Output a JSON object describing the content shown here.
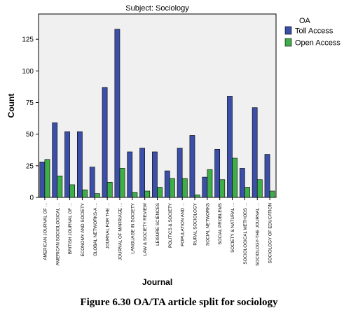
{
  "chart_data": {
    "type": "bar",
    "title": "Subject: Sociology",
    "xlabel": "Journal",
    "ylabel": "Count",
    "ylim": [
      0,
      145
    ],
    "yticks": [
      0,
      25,
      50,
      75,
      100,
      125
    ],
    "grid": false,
    "legend": {
      "title": "OA",
      "placement": "right"
    },
    "categories": [
      "AMERICAN JOURNAL OF ...",
      "AMERICAN SOCIOLOGICAL ...",
      "BRITISH JOURNAL OF ...",
      "ECONOMY AND SOCIETY",
      "GLOBAL NETWORKS-A ...",
      "JOURNAL FOR THE ...",
      "JOURNAL OF MARRIAGE ...",
      "LANGUAGE IN SOCIETY",
      "LAW & SOCIETY REVIEW",
      "LEISURE SCIENCES",
      "POLITICS & SOCIETY",
      "POPULATION AND ...",
      "RURAL SOCIOLOGY",
      "SOCIAL NETWORKS",
      "SOCIAL PROBLEMS",
      "SOCIETY & NATURAL ...",
      "SOCIOLOGICAL METHODS ...",
      "SOCIOLOGY-THE JOURNAL ...",
      "SOCIOLOGY OF EDUCATION"
    ],
    "series": [
      {
        "name": "Toll Access",
        "color": "#3c4fa8",
        "values": [
          28,
          59,
          52,
          52,
          24,
          87,
          133,
          36,
          39,
          36,
          21,
          39,
          49,
          16,
          38,
          80,
          23,
          71,
          34
        ]
      },
      {
        "name": "Open Access",
        "color": "#3fae49",
        "values": [
          30,
          17,
          10,
          6,
          3,
          12,
          23,
          4,
          5,
          8,
          15,
          15,
          2,
          22,
          14,
          31,
          8,
          14,
          5
        ]
      }
    ]
  },
  "caption": "Figure 6.30 OA/TA article split for sociology"
}
